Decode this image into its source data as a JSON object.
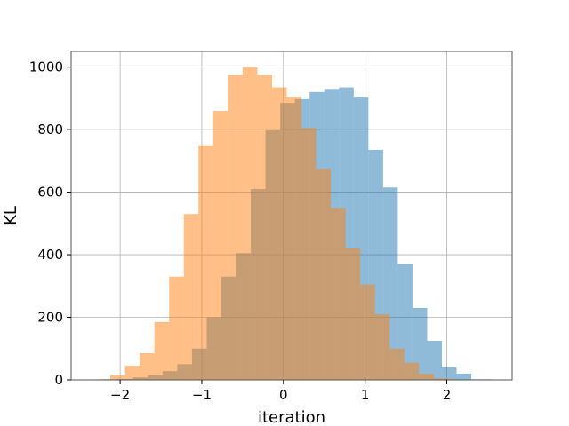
{
  "chart_data": {
    "type": "histogram",
    "title": "",
    "xlabel": "iteration",
    "ylabel": "KL",
    "xlim": [
      -2.6,
      2.8
    ],
    "ylim": [
      0,
      1050
    ],
    "xticks": [
      -2,
      -1,
      0,
      1,
      2
    ],
    "xtick_labels": [
      "−2",
      "−1",
      "0",
      "1",
      "2"
    ],
    "yticks": [
      0,
      200,
      400,
      600,
      800,
      1000
    ],
    "ytick_labels": [
      "0",
      "200",
      "400",
      "600",
      "800",
      "1000"
    ],
    "grid": true,
    "legend": "none",
    "series": [
      {
        "color": "#1f77b4",
        "alpha": 0.5,
        "bin_edges": [
          -2.2,
          -2.02,
          -1.84,
          -1.66,
          -1.48,
          -1.3,
          -1.12,
          -0.94,
          -0.76,
          -0.58,
          -0.4,
          -0.22,
          -0.04,
          0.14,
          0.32,
          0.5,
          0.68,
          0.86,
          1.04,
          1.22,
          1.4,
          1.58,
          1.76,
          1.94,
          2.12,
          2.3,
          2.55
        ],
        "counts": [
          2,
          3,
          8,
          15,
          28,
          50,
          100,
          200,
          330,
          405,
          610,
          800,
          885,
          900,
          920,
          930,
          935,
          905,
          735,
          615,
          370,
          230,
          125,
          40,
          20,
          2
        ]
      },
      {
        "color": "#ff7f0e",
        "alpha": 0.5,
        "bin_edges": [
          -2.3,
          -2.12,
          -1.94,
          -1.76,
          -1.58,
          -1.4,
          -1.22,
          -1.04,
          -0.86,
          -0.68,
          -0.5,
          -0.32,
          -0.14,
          0.04,
          0.22,
          0.4,
          0.58,
          0.76,
          0.94,
          1.12,
          1.3,
          1.48,
          1.66,
          1.84,
          2.02,
          2.2
        ],
        "counts": [
          2,
          15,
          45,
          85,
          185,
          330,
          530,
          750,
          860,
          975,
          1000,
          975,
          935,
          905,
          805,
          675,
          550,
          420,
          305,
          210,
          100,
          55,
          20,
          5,
          2
        ]
      }
    ]
  }
}
